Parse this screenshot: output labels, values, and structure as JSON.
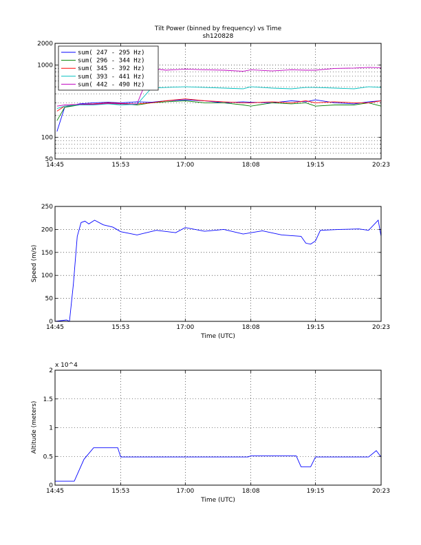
{
  "chart_data": [
    {
      "type": "line",
      "title": "Tilt Power (binned by frequency) vs Time",
      "subtitle": "sh120828",
      "xlabel": "",
      "ylabel": "",
      "yscale": "log",
      "ylim": [
        50,
        2000
      ],
      "xlim": [
        "14:45",
        "20:23"
      ],
      "xtick_labels": [
        "14:45",
        "15:53",
        "17:00",
        "18:08",
        "19:15",
        "20:23"
      ],
      "ytick_labels": [
        "50",
        "100",
        "1000",
        "2000"
      ],
      "grid": true,
      "legend_position": "top-left",
      "x": [
        "14:47",
        "14:55",
        "15:10",
        "15:25",
        "15:40",
        "15:53",
        "16:10",
        "16:25",
        "16:40",
        "17:00",
        "17:20",
        "17:40",
        "18:00",
        "18:08",
        "18:30",
        "18:50",
        "19:05",
        "19:15",
        "19:35",
        "19:55",
        "20:10",
        "20:23"
      ],
      "series": [
        {
          "name": "sum(  247 -    295 Hz)",
          "color": "#0000ff",
          "values": [
            120,
            260,
            290,
            300,
            305,
            300,
            310,
            305,
            320,
            330,
            320,
            300,
            310,
            305,
            300,
            320,
            310,
            330,
            300,
            290,
            310,
            320
          ]
        },
        {
          "name": "sum(  296 -    344 Hz)",
          "color": "#008000",
          "values": [
            170,
            260,
            280,
            285,
            290,
            290,
            280,
            300,
            310,
            320,
            300,
            300,
            280,
            270,
            300,
            290,
            300,
            270,
            280,
            280,
            300,
            270
          ]
        },
        {
          "name": "sum(  345 -    392 Hz)",
          "color": "#ff0000",
          "values": [
            230,
            270,
            285,
            290,
            300,
            295,
            290,
            300,
            320,
            340,
            320,
            310,
            300,
            300,
            310,
            300,
            320,
            300,
            310,
            300,
            300,
            320
          ]
        },
        {
          "name": "sum(  393 -    441 Hz)",
          "color": "#00bfbf",
          "values": [
            250,
            270,
            280,
            280,
            290,
            280,
            285,
            480,
            490,
            500,
            490,
            480,
            470,
            500,
            480,
            470,
            490,
            490,
            480,
            470,
            500,
            490
          ]
        },
        {
          "name": "sum(  442 -    490 Hz)",
          "color": "#bf00bf",
          "values": [
            270,
            280,
            285,
            285,
            295,
            290,
            290,
            900,
            850,
            880,
            860,
            850,
            820,
            860,
            830,
            860,
            850,
            850,
            900,
            910,
            930,
            920
          ]
        }
      ]
    },
    {
      "type": "line",
      "title": "",
      "xlabel": "Time (UTC)",
      "ylabel": "Speed (m/s)",
      "ylim": [
        0,
        250
      ],
      "xlim": [
        "14:45",
        "20:23"
      ],
      "xtick_labels": [
        "14:45",
        "15:53",
        "17:00",
        "18:08",
        "19:15",
        "20:23"
      ],
      "ytick_labels": [
        "0",
        "50",
        "100",
        "150",
        "200",
        "250"
      ],
      "grid": true,
      "x": [
        "14:45",
        "14:57",
        "15:00",
        "15:04",
        "15:08",
        "15:12",
        "15:16",
        "15:20",
        "15:26",
        "15:35",
        "15:45",
        "15:53",
        "16:10",
        "16:30",
        "16:50",
        "17:00",
        "17:20",
        "17:40",
        "18:00",
        "18:20",
        "18:40",
        "19:00",
        "19:05",
        "19:10",
        "19:15",
        "19:20",
        "19:40",
        "20:00",
        "20:10",
        "20:20",
        "20:23"
      ],
      "series": [
        {
          "name": "",
          "color": "#0000ff",
          "values": [
            0,
            3,
            0,
            80,
            185,
            215,
            218,
            212,
            220,
            210,
            205,
            195,
            188,
            198,
            193,
            204,
            196,
            200,
            190,
            197,
            188,
            185,
            170,
            168,
            175,
            198,
            200,
            201,
            198,
            220,
            185
          ]
        }
      ]
    },
    {
      "type": "line",
      "title": "",
      "xlabel": "Time (UTC)",
      "ylabel": "Altitude (meters)",
      "y_multiplier": "x 10^4",
      "ylim": [
        0,
        2
      ],
      "xlim": [
        "14:45",
        "20:23"
      ],
      "xtick_labels": [
        "14:45",
        "15:53",
        "17:00",
        "18:08",
        "19:15",
        "20:23"
      ],
      "ytick_labels": [
        "0",
        "0.5",
        "1",
        "1.5",
        "2"
      ],
      "grid": true,
      "x": [
        "14:45",
        "15:05",
        "15:15",
        "15:25",
        "15:50",
        "15:53",
        "16:30",
        "17:30",
        "18:05",
        "18:08",
        "18:40",
        "18:55",
        "19:00",
        "19:10",
        "19:15",
        "19:40",
        "20:10",
        "20:18",
        "20:23"
      ],
      "series": [
        {
          "name": "",
          "color": "#0000ff",
          "values": [
            0.07,
            0.07,
            0.45,
            0.65,
            0.65,
            0.49,
            0.49,
            0.49,
            0.49,
            0.51,
            0.51,
            0.51,
            0.32,
            0.32,
            0.49,
            0.49,
            0.49,
            0.6,
            0.49
          ]
        }
      ]
    }
  ]
}
